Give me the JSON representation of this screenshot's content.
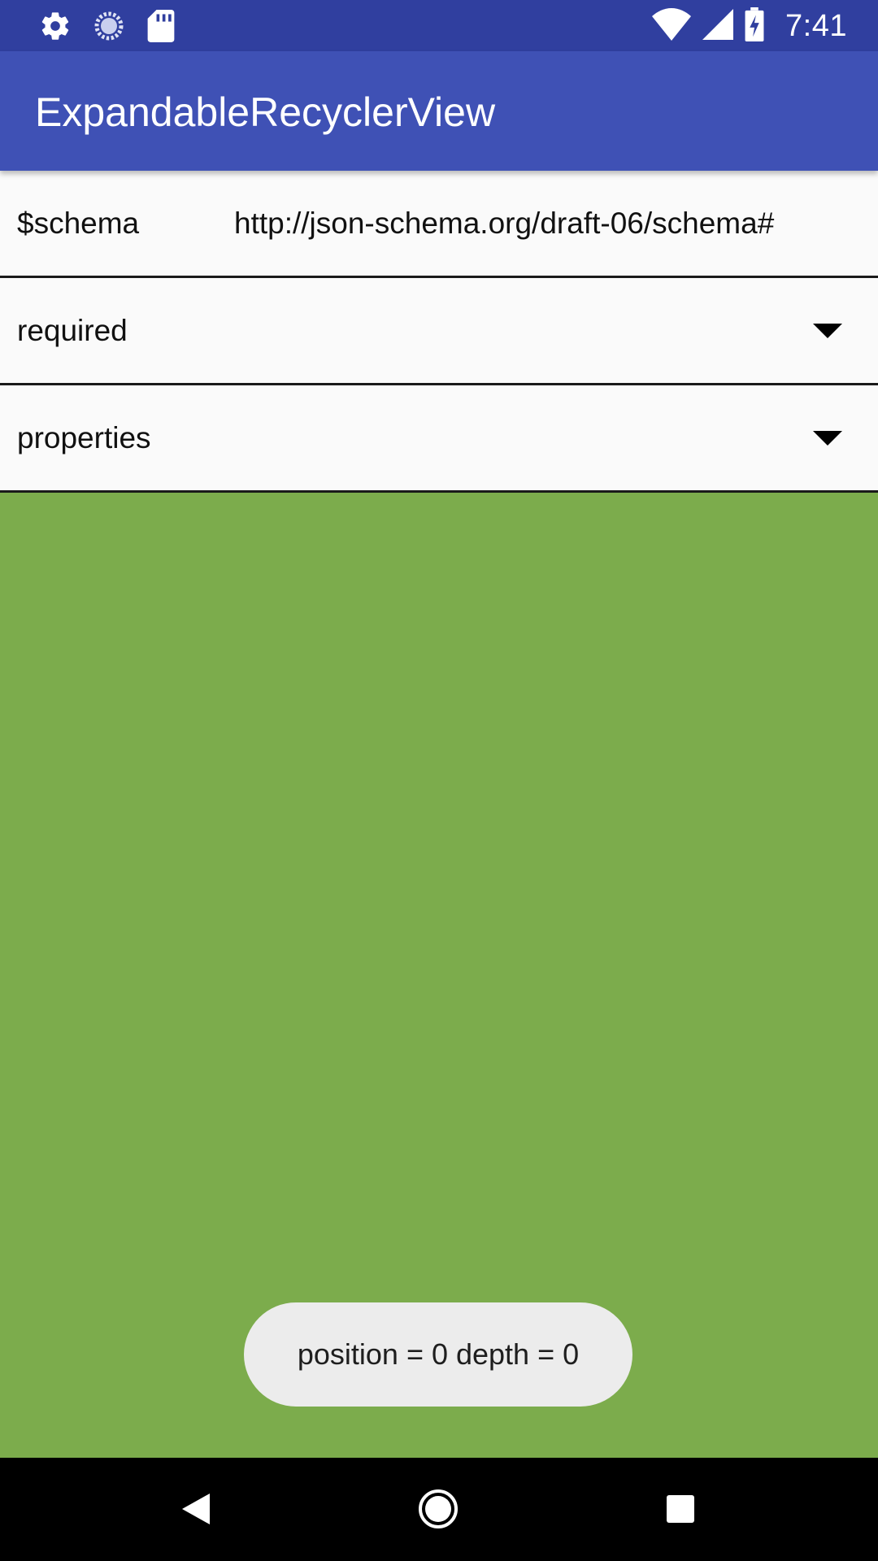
{
  "status_bar": {
    "time": "7:41",
    "left_icons": [
      "gear-icon",
      "loading-icon",
      "sd-card-icon"
    ],
    "right_icons": [
      "wifi-icon",
      "cell-signal-icon",
      "battery-charging-icon"
    ],
    "background": "#303f9f"
  },
  "app_bar": {
    "title": "ExpandableRecyclerView",
    "background": "#3f51b5"
  },
  "list": {
    "items": [
      {
        "key": "$schema",
        "value": "http://json-schema.org/draft-06/schema#",
        "expandable": false
      },
      {
        "key": "required",
        "value": "",
        "expandable": true
      },
      {
        "key": "properties",
        "value": "",
        "expandable": true
      }
    ]
  },
  "content_background": "#7cac4c",
  "toast": {
    "text": "position = 0 depth = 0"
  },
  "nav_bar": {
    "buttons": [
      "back-icon",
      "home-icon",
      "recents-icon"
    ]
  }
}
